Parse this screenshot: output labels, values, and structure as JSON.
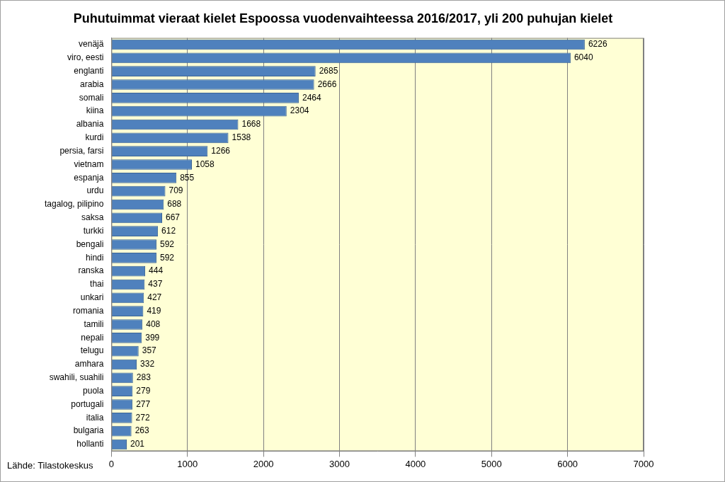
{
  "chart_data": {
    "type": "bar",
    "orientation": "horizontal",
    "title": "Puhutuimmat vieraat kielet Espoossa vuodenvaihteessa 2016/2017, yli 200 puhujan kielet",
    "annotations": [
      "Lähde: Tilastokeskus"
    ],
    "categories": [
      "venäjä",
      "viro, eesti",
      "englanti",
      "arabia",
      "somali",
      "kiina",
      "albania",
      "kurdi",
      "persia, farsi",
      "vietnam",
      "espanja",
      "urdu",
      "tagalog, pilipino",
      "saksa",
      "turkki",
      "bengali",
      "hindi",
      "ranska",
      "thai",
      "unkari",
      "romania",
      "tamili",
      "nepali",
      "telugu",
      "amhara",
      "swahili, suahili",
      "puola",
      "portugali",
      "italia",
      "bulgaria",
      "hollanti"
    ],
    "values": [
      6226,
      6040,
      2685,
      2666,
      2464,
      2304,
      1668,
      1538,
      1266,
      1058,
      855,
      709,
      688,
      667,
      612,
      592,
      592,
      444,
      437,
      427,
      419,
      408,
      399,
      357,
      332,
      283,
      279,
      277,
      272,
      263,
      201
    ],
    "color": "#4f81bd",
    "xlim": [
      0,
      7000
    ],
    "xticks": [
      0,
      1000,
      2000,
      3000,
      4000,
      5000,
      6000,
      7000
    ],
    "grid": true,
    "data_labels": true
  }
}
